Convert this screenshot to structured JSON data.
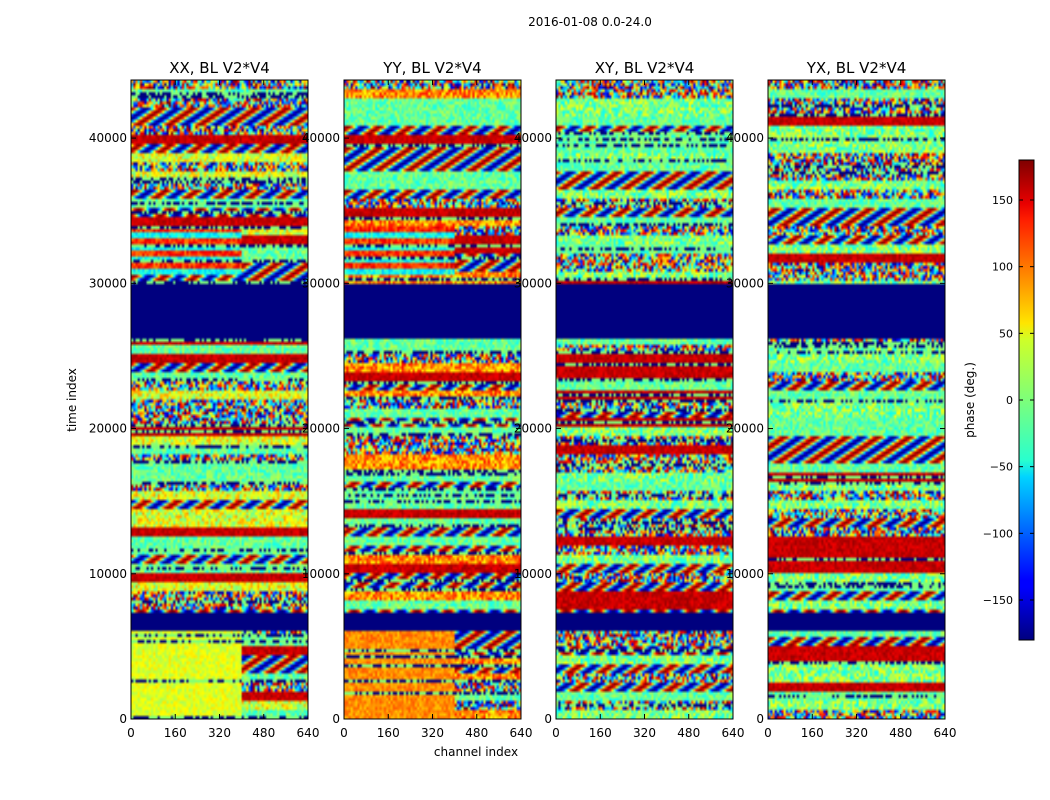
{
  "figure": {
    "suptitle": "2016-01-08 0.0-24.0"
  },
  "chart_data": {
    "type": "heatmap",
    "colormap": "jet",
    "xlabel": "channel index",
    "ylabel": "time index",
    "xlim": [
      0,
      640
    ],
    "ylim": [
      0,
      44000
    ],
    "xticks": [
      0,
      160,
      320,
      480,
      640
    ],
    "yticks": [
      0,
      10000,
      20000,
      30000,
      40000
    ],
    "panels": [
      {
        "title": "XX, BL V2*V4",
        "profile": "parallel",
        "base_phase": 35
      },
      {
        "title": "YY, BL V2*V4",
        "profile": "parallel",
        "base_phase": 85
      },
      {
        "title": "XY, BL V2*V4",
        "profile": "cross",
        "base_phase": 0
      },
      {
        "title": "YX, BL V2*V4",
        "profile": "cross",
        "base_phase": 0
      }
    ],
    "flagged_time_ranges": [
      [
        26200,
        29900
      ],
      [
        6000,
        7300
      ]
    ],
    "colorbar": {
      "label": "phase (deg.)",
      "range": [
        -180,
        180
      ],
      "ticks": [
        150,
        100,
        50,
        0,
        -50,
        -100,
        -150
      ],
      "tick_labels": [
        "150",
        "100",
        "50",
        "0",
        "−50",
        "−100",
        "−150"
      ]
    }
  }
}
